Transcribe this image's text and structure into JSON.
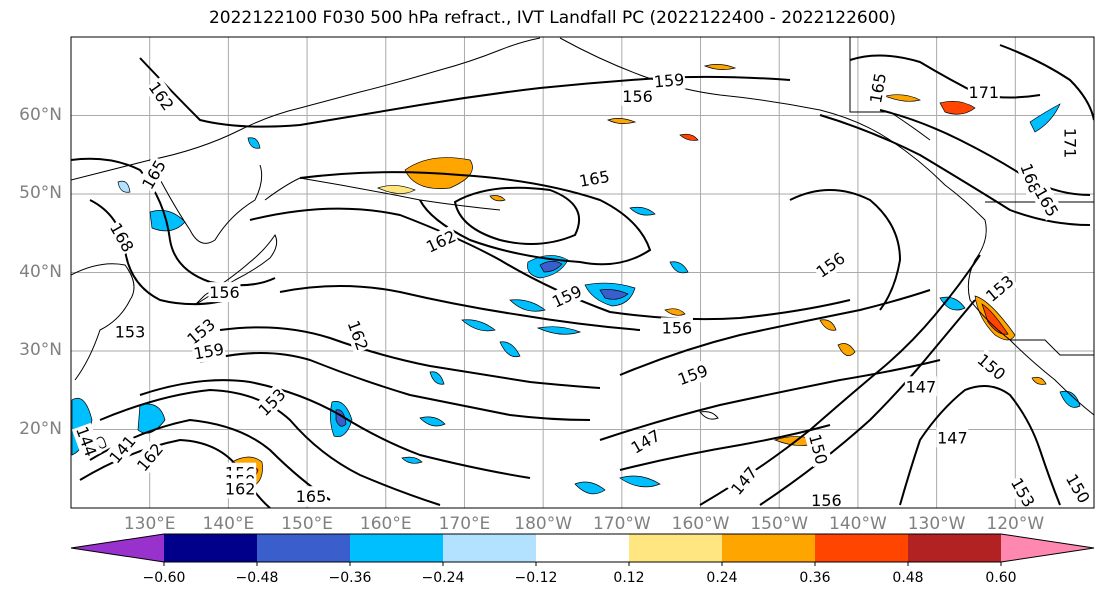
{
  "title": "2022122100 F030 500 hPa refract., IVT Landfall PC (2022122400 - 2022122600)",
  "axes": {
    "lat_labels": [
      {
        "text": "60°N",
        "lat": 60
      },
      {
        "text": "50°N",
        "lat": 50
      },
      {
        "text": "40°N",
        "lat": 40
      },
      {
        "text": "30°N",
        "lat": 30
      },
      {
        "text": "20°N",
        "lat": 20
      }
    ],
    "lon_labels": [
      {
        "text": "130°E",
        "lon": 130
      },
      {
        "text": "140°E",
        "lon": 140
      },
      {
        "text": "150°E",
        "lon": 150
      },
      {
        "text": "160°E",
        "lon": 160
      },
      {
        "text": "170°E",
        "lon": 170
      },
      {
        "text": "180°W",
        "lon": 180
      },
      {
        "text": "170°W",
        "lon": 190
      },
      {
        "text": "160°W",
        "lon": 200
      },
      {
        "text": "150°W",
        "lon": 210
      },
      {
        "text": "140°W",
        "lon": 220
      },
      {
        "text": "130°W",
        "lon": 230
      },
      {
        "text": "120°W",
        "lon": 240
      }
    ],
    "lon_range": [
      120,
      250
    ],
    "lat_range": [
      10,
      70
    ],
    "grid": true
  },
  "contour_labels": [
    {
      "text": "162",
      "lon": 131.5,
      "lat": 62.5,
      "rot": 55
    },
    {
      "text": "165",
      "lon": 130.5,
      "lat": 52.5,
      "rot": -60
    },
    {
      "text": "168",
      "lon": 126.5,
      "lat": 44.5,
      "rot": 60
    },
    {
      "text": "156",
      "lon": 139.5,
      "lat": 37.5,
      "rot": 0
    },
    {
      "text": "153",
      "lon": 127.5,
      "lat": 32.5,
      "rot": 0
    },
    {
      "text": "153",
      "lon": 136.5,
      "lat": 32.5,
      "rot": -40
    },
    {
      "text": "159",
      "lon": 137.5,
      "lat": 30,
      "rot": -10
    },
    {
      "text": "162",
      "lon": 156.5,
      "lat": 32,
      "rot": 70
    },
    {
      "text": "153",
      "lon": 145.5,
      "lat": 23.5,
      "rot": -45
    },
    {
      "text": "144",
      "lon": 122,
      "lat": 18.5,
      "rot": 70
    },
    {
      "text": "141",
      "lon": 126.5,
      "lat": 17.5,
      "rot": -50
    },
    {
      "text": "162",
      "lon": 130,
      "lat": 16.5,
      "rot": -50
    },
    {
      "text": "156",
      "lon": 141.5,
      "lat": 14.5,
      "rot": 0
    },
    {
      "text": "159",
      "lon": 141.5,
      "lat": 13.5,
      "rot": 0
    },
    {
      "text": "162",
      "lon": 141.5,
      "lat": 12.5,
      "rot": 0
    },
    {
      "text": "165",
      "lon": 150.5,
      "lat": 11.5,
      "rot": 0
    },
    {
      "text": "165",
      "lon": 186.5,
      "lat": 52,
      "rot": -10
    },
    {
      "text": "162",
      "lon": 167,
      "lat": 44,
      "rot": -25
    },
    {
      "text": "159",
      "lon": 183,
      "lat": 37,
      "rot": -25
    },
    {
      "text": "156",
      "lon": 197,
      "lat": 33,
      "rot": 0
    },
    {
      "text": "159",
      "lon": 199,
      "lat": 27,
      "rot": -20
    },
    {
      "text": "147",
      "lon": 193,
      "lat": 18.5,
      "rot": -30
    },
    {
      "text": "147",
      "lon": 205.5,
      "lat": 13.5,
      "rot": -50
    },
    {
      "text": "150",
      "lon": 215,
      "lat": 17.5,
      "rot": 75
    },
    {
      "text": "156",
      "lon": 216,
      "lat": 11,
      "rot": 0
    },
    {
      "text": "159",
      "lon": 196,
      "lat": 64.5,
      "rot": -5
    },
    {
      "text": "156",
      "lon": 192,
      "lat": 62.5,
      "rot": 0
    },
    {
      "text": "165",
      "lon": 222.5,
      "lat": 63.5,
      "rot": -80
    },
    {
      "text": "171",
      "lon": 236,
      "lat": 63,
      "rot": 0
    },
    {
      "text": "171",
      "lon": 247,
      "lat": 56.5,
      "rot": 90
    },
    {
      "text": "168",
      "lon": 242,
      "lat": 52,
      "rot": 70
    },
    {
      "text": "165",
      "lon": 244,
      "lat": 49,
      "rot": 60
    },
    {
      "text": "156",
      "lon": 216.5,
      "lat": 41,
      "rot": -35
    },
    {
      "text": "153",
      "lon": 238,
      "lat": 38,
      "rot": -40
    },
    {
      "text": "150",
      "lon": 237,
      "lat": 28,
      "rot": 40
    },
    {
      "text": "147",
      "lon": 228,
      "lat": 25.5,
      "rot": 0
    },
    {
      "text": "147",
      "lon": 232,
      "lat": 19,
      "rot": 0
    },
    {
      "text": "153",
      "lon": 241,
      "lat": 12,
      "rot": 60
    },
    {
      "text": "150",
      "lon": 248,
      "lat": 12.5,
      "rot": 60
    }
  ],
  "colorbar": {
    "colors": [
      "#9932cc",
      "#00008b",
      "#3a5fcd",
      "#00bfff",
      "#b2e2ff",
      "#ffffff",
      "#ffe680",
      "#ffa500",
      "#ff4500",
      "#b22222",
      "#ff88b0"
    ],
    "ticks": [
      "−0.60",
      "−0.48",
      "−0.36",
      "−0.24",
      "−0.12",
      "0.12",
      "0.24",
      "0.36",
      "0.48",
      "0.60"
    ],
    "extend": "both"
  },
  "colors": {
    "land_outline": "#000000",
    "grid": "#aaaaaa",
    "label_gray": "#808080"
  }
}
